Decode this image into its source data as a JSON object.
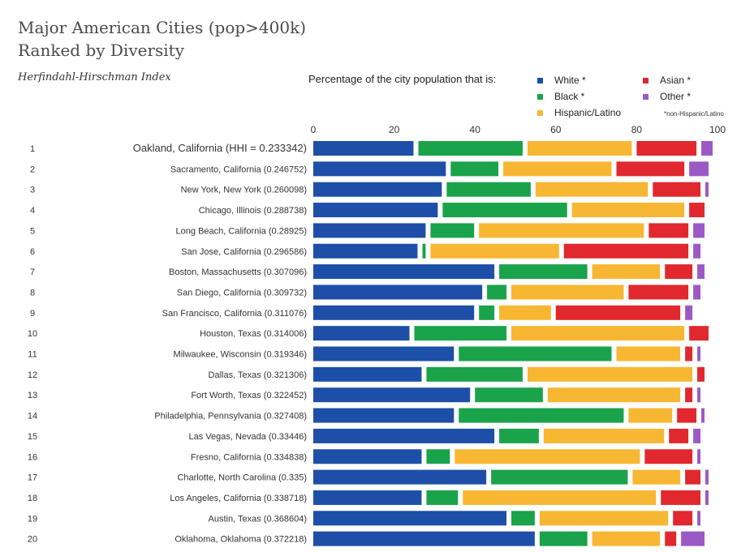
{
  "title_line1": "Major American Cities (pop>400k)",
  "title_line2": "Ranked by Diversity",
  "subtitle": "Herfindahl-Hirschman Index",
  "legend_title": "Percentage of the city population that is:",
  "footnote": "*non-Hispanic/Latino",
  "colors": {
    "white": "#1d4fa8",
    "black": "#1aa34a",
    "hispanic": "#f7b733",
    "asian": "#e0282e",
    "other": "#9b59c6"
  },
  "legend": [
    {
      "label": "White *",
      "color": "#1d4fa8"
    },
    {
      "label": "Black *",
      "color": "#1aa34a"
    },
    {
      "label": "Hispanic/Latino",
      "color": "#f7b733"
    },
    {
      "label": "Asian *",
      "color": "#e0282e"
    },
    {
      "label": "Other *",
      "color": "#9b59c6"
    }
  ],
  "chart_data": {
    "type": "bar",
    "orientation": "horizontal",
    "stacked": true,
    "title": "Major American Cities (pop>400k) Ranked by Diversity",
    "xlim": [
      0,
      100
    ],
    "xticks": [
      "0",
      "20",
      "40",
      "60",
      "80",
      "100"
    ],
    "ranks": [
      "1",
      "2",
      "3",
      "4",
      "5",
      "6",
      "7",
      "8",
      "9",
      "10",
      "11",
      "12",
      "13",
      "14",
      "15",
      "16",
      "17",
      "18",
      "19",
      "20"
    ],
    "categories": [
      "Oakland, California (HHI = 0.233342)",
      "Sacramento, California (0.246752)",
      "New York, New York (0.260098)",
      "Chicago, Illinois (0.288738)",
      "Long Beach, California (0.28925)",
      "San Jose, California (0.296586)",
      "Boston, Massachusetts (0.307096)",
      "San Diego, California (0.309732)",
      "San Francisco, California (0.311076)",
      "Houston, Texas (0.314006)",
      "Milwaukee, Wisconsin (0.319346)",
      "Dallas, Texas (0.321306)",
      "Fort Worth, Texas (0.322452)",
      "Philadelphia, Pennsylvania (0.327408)",
      "Las Vegas, Nevada (0.33446)",
      "Fresno, California (0.334838)",
      "Charlotte, North Carolina (0.335)",
      "Los Angeles, California (0.338718)",
      "Austin, Texas (0.368604)",
      "Oklahoma, Oklahoma (0.372218)"
    ],
    "series": [
      {
        "name": "White *",
        "values": [
          26,
          34,
          33,
          32,
          29,
          27,
          46,
          43,
          41,
          25,
          36,
          28,
          40,
          36,
          46,
          28,
          44,
          28,
          49,
          56
        ]
      },
      {
        "name": "Black *",
        "values": [
          27,
          13,
          22,
          32,
          12,
          2,
          23,
          6,
          5,
          24,
          39,
          25,
          18,
          42,
          11,
          7,
          35,
          9,
          7,
          13
        ]
      },
      {
        "name": "Hispanic/Latino",
        "values": [
          27,
          28,
          29,
          29,
          42,
          33,
          18,
          29,
          14,
          44,
          17,
          42,
          34,
          12,
          31,
          47,
          13,
          49,
          33,
          18
        ]
      },
      {
        "name": "Asian *",
        "values": [
          16,
          18,
          13,
          5,
          11,
          32,
          8,
          16,
          32,
          6,
          3,
          3,
          3,
          6,
          6,
          13,
          5,
          11,
          6,
          4
        ]
      },
      {
        "name": "Other *",
        "values": [
          4,
          6,
          2,
          1,
          4,
          3,
          3,
          3,
          3,
          1,
          2,
          1,
          2,
          2,
          3,
          2,
          2,
          2,
          2,
          7
        ]
      }
    ]
  }
}
